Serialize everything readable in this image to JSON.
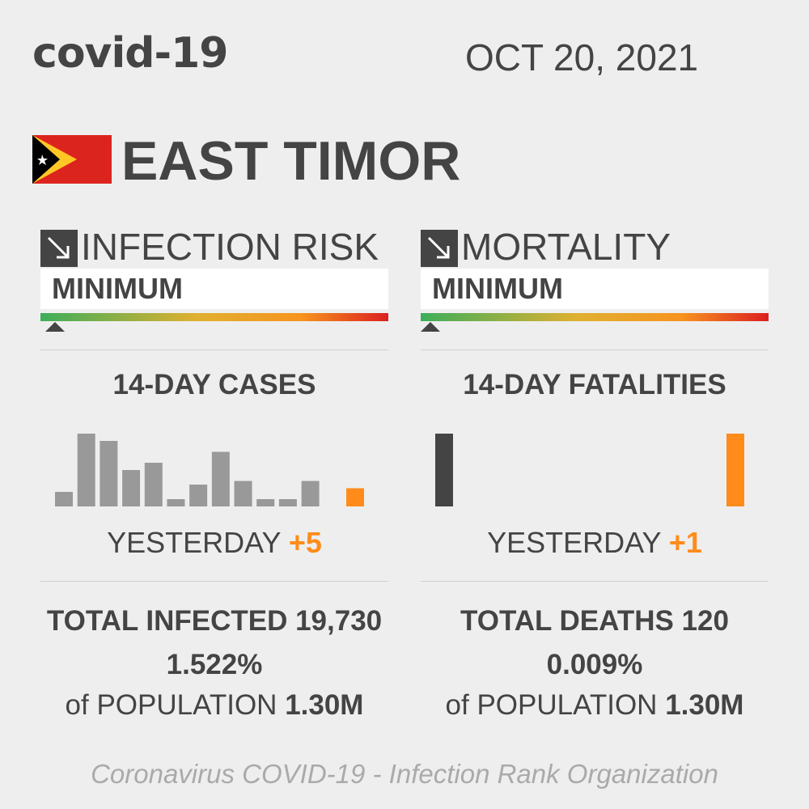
{
  "header": {
    "title": "covid-19",
    "date": "OCT 20, 2021"
  },
  "country": "EAST TIMOR",
  "panels": [
    {
      "risk_title": "INFECTION RISK",
      "risk_level": "MINIMUM",
      "chart_title": "14-DAY CASES",
      "daily": [
        4,
        20,
        18,
        10,
        12,
        2,
        6,
        15,
        7,
        2,
        2,
        7,
        null,
        5
      ],
      "bar_color": "#999999",
      "last_color": "#ff8c1a",
      "yesterday_label": "YESTERDAY",
      "yesterday_value": "+5",
      "total_label": "TOTAL INFECTED",
      "total_value": "19,730",
      "percent": "1.522%",
      "population_label": "of POPULATION",
      "population_value": "1.30M"
    },
    {
      "risk_title": "MORTALITY",
      "risk_level": "MINIMUM",
      "chart_title": "14-DAY FATALITIES",
      "daily": [
        1,
        0,
        0,
        0,
        0,
        0,
        0,
        0,
        0,
        0,
        0,
        0,
        0,
        1
      ],
      "bar_color": "#444444",
      "last_color": "#ff8c1a",
      "yesterday_label": "YESTERDAY",
      "yesterday_value": "+1",
      "total_label": "TOTAL DEATHS",
      "total_value": "120",
      "percent": "0.009%",
      "population_label": "of POPULATION",
      "population_value": "1.30M"
    }
  ],
  "footer": "Coronavirus COVID-19 - Infection Rank Organization"
}
